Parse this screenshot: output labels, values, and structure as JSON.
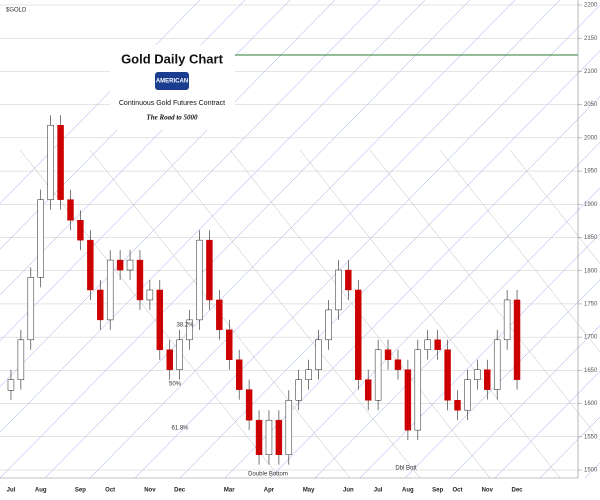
{
  "chart_data": {
    "type": "candlestick",
    "symbol": "$GOLD",
    "title": "Gold Daily Chart",
    "logo": "AMERICAN",
    "subtitle": "Continuous Gold Futures Contract",
    "tagline": "The Road to 5000",
    "categories": [
      "Jul",
      null,
      null,
      "Aug",
      null,
      null,
      null,
      "Sep",
      null,
      null,
      "Oct",
      null,
      null,
      null,
      "Nov",
      null,
      null,
      "Dec",
      null,
      null,
      null,
      null,
      "Mar",
      null,
      null,
      null,
      "Apr",
      null,
      null,
      null,
      "May",
      null,
      null,
      null,
      "Jun",
      null,
      null,
      "Jul",
      null,
      null,
      "Aug",
      null,
      null,
      "Sep",
      null,
      "Oct",
      null,
      null,
      "Nov",
      null,
      null,
      "Dec"
    ],
    "open": [
      1620,
      1636,
      1696,
      1790,
      1907,
      2019,
      1907,
      1876,
      1846,
      1771,
      1726,
      1816,
      1801,
      1816,
      1756,
      1771,
      1681,
      1651,
      1696,
      1726,
      1846,
      1756,
      1711,
      1666,
      1621,
      1575,
      1523,
      1575,
      1523,
      1605,
      1636,
      1651,
      1696,
      1741,
      1801,
      1771,
      1636,
      1605,
      1681,
      1666,
      1651,
      1560,
      1681,
      1696,
      1681,
      1605,
      1590,
      1636,
      1651,
      1621,
      1696,
      1756
    ],
    "high": [
      1651,
      1711,
      1805,
      1922,
      2034,
      2034,
      1922,
      1891,
      1861,
      1786,
      1831,
      1831,
      1831,
      1831,
      1786,
      1786,
      1696,
      1711,
      1741,
      1861,
      1861,
      1771,
      1726,
      1681,
      1636,
      1590,
      1590,
      1590,
      1620,
      1651,
      1666,
      1711,
      1756,
      1816,
      1816,
      1786,
      1651,
      1696,
      1696,
      1681,
      1666,
      1696,
      1711,
      1711,
      1696,
      1620,
      1651,
      1666,
      1666,
      1711,
      1771,
      1771
    ],
    "low": [
      1605,
      1621,
      1681,
      1775,
      1892,
      1892,
      1861,
      1831,
      1756,
      1711,
      1711,
      1786,
      1786,
      1741,
      1741,
      1666,
      1636,
      1636,
      1681,
      1711,
      1741,
      1696,
      1651,
      1606,
      1560,
      1508,
      1508,
      1508,
      1508,
      1590,
      1621,
      1636,
      1681,
      1726,
      1756,
      1621,
      1590,
      1590,
      1651,
      1636,
      1545,
      1545,
      1666,
      1666,
      1590,
      1575,
      1575,
      1621,
      1606,
      1606,
      1681,
      1621
    ],
    "close": [
      1636,
      1696,
      1790,
      1907,
      2019,
      1907,
      1876,
      1846,
      1771,
      1726,
      1816,
      1801,
      1816,
      1756,
      1771,
      1681,
      1651,
      1696,
      1726,
      1846,
      1756,
      1711,
      1666,
      1621,
      1575,
      1523,
      1575,
      1523,
      1605,
      1636,
      1651,
      1696,
      1741,
      1801,
      1771,
      1636,
      1605,
      1681,
      1666,
      1651,
      1560,
      1681,
      1696,
      1681,
      1605,
      1590,
      1636,
      1651,
      1621,
      1696,
      1756,
      1636
    ],
    "up_color": "#ffffff",
    "down_color": "#cc0000",
    "ylim": [
      1500,
      2200
    ],
    "yticks": [
      1500,
      1550,
      1600,
      1650,
      1700,
      1750,
      1800,
      1850,
      1900,
      1950,
      2000,
      2050,
      2100,
      2150,
      2200
    ],
    "grid": true,
    "annotations": [
      "38.2%",
      "50%",
      "61.8%",
      "Double Bottom",
      "Dbl Bott"
    ]
  }
}
